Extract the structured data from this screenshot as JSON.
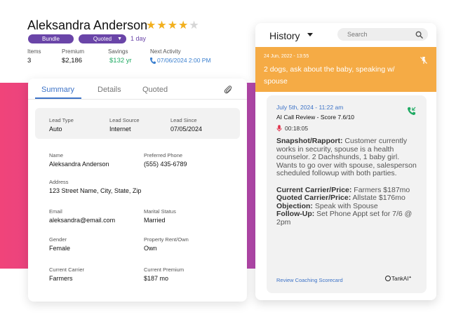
{
  "customer": {
    "name": "Aleksandra Anderson",
    "rating": 4,
    "rating_max": 5,
    "tags": [
      "Bundle",
      "Quoted"
    ],
    "age": "1 day"
  },
  "stats": [
    {
      "label": "Items",
      "value": "3"
    },
    {
      "label": "Premium",
      "value": "$2,186"
    },
    {
      "label": "Savings",
      "value": "$132 yr"
    },
    {
      "label": "Next Activity",
      "value": "07/06/2024 2:00 PM"
    }
  ],
  "summary": {
    "tabs": [
      "Summary",
      "Details",
      "Quoted"
    ],
    "active_tab": "Summary",
    "lead": [
      {
        "label": "Lead Type",
        "value": "Auto"
      },
      {
        "label": "Lead Source",
        "value": "Internet"
      },
      {
        "label": "Lead Since",
        "value": "07/05/2024"
      }
    ],
    "fields": [
      {
        "label": "Name",
        "value": "Aleksandra Anderson"
      },
      {
        "label": "Preferred Phone",
        "value": "(555) 435-6789"
      },
      {
        "label": "Address",
        "value": "123 Street Name, City, State, Zip"
      },
      {
        "label": "Email",
        "value": "aleksandra@email.com"
      },
      {
        "label": "Marital Status",
        "value": "Married"
      },
      {
        "label": "Gender",
        "value": "Female"
      },
      {
        "label": "Property Rent/Own",
        "value": "Own"
      },
      {
        "label": "Current Carrier",
        "value": "Farmers"
      },
      {
        "label": "Current Premium",
        "value": "$187 mo"
      }
    ]
  },
  "history": {
    "title": "History",
    "search_placeholder": "Search",
    "note": {
      "date": "24 Jun, 2022 - 13:55",
      "text": "2 dogs, ask about the baby, speaking w/ spouse"
    },
    "call": {
      "date": "July 5th, 2024 - 11:22 am",
      "score": "AI Call Review - Score 7.6/10",
      "duration": "00:18:05",
      "snapshot_label": "Snapshot/Rapport:",
      "snapshot_text": "Customer currently works in security, spouse is a health counselor. 2 Dachshunds, 1 baby girl. Wants to go over with spouse, salesperson scheduled followup with both parties.",
      "current_carrier_label": "Current Carrier/Price:",
      "current_carrier_text": "Farmers $187mo",
      "quoted_carrier_label": "Quoted Carrier/Price:",
      "quoted_carrier_text": "Allstate $176mo",
      "objection_label": "Objection:",
      "objection_text": "Speak with Spouse",
      "followup_label": "Follow-Up:",
      "followup_text": "Set Phone Appt set for 7/6 @ 2pm",
      "link": "Review Coaching Scorecard",
      "brand": "TankAI"
    }
  },
  "colors": {
    "accent_blue": "#3d73c7",
    "tag_purple": "#6a45a8",
    "note_orange": "#f5ab45",
    "savings_green": "#1faa63",
    "star_gold": "#f2b01e"
  }
}
